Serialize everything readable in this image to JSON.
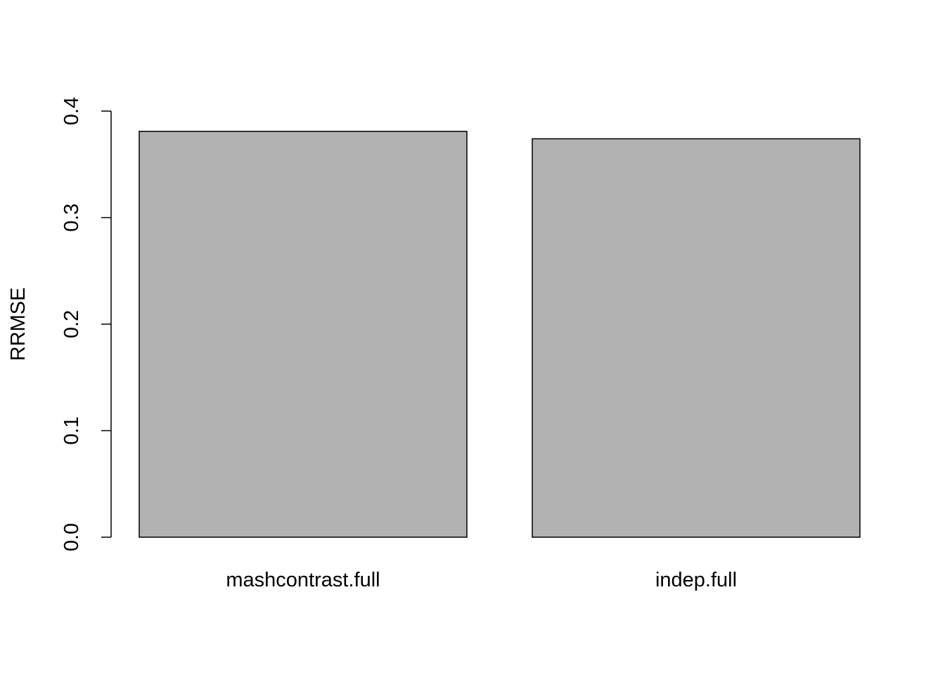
{
  "chart_data": {
    "type": "bar",
    "title": "",
    "xlabel": "",
    "ylabel": "RRMSE",
    "categories": [
      "mashcontrast.full",
      "indep.full"
    ],
    "values": [
      0.381,
      0.374
    ],
    "ylim": [
      0,
      0.4
    ],
    "yticks": [
      0,
      0.1,
      0.2,
      0.3,
      0.4
    ],
    "ytick_labels": [
      "0.0",
      "0.1",
      "0.2",
      "0.3",
      "0.4"
    ],
    "grid": false,
    "legend": "none",
    "bar_fill": "#b2b2b2",
    "bar_stroke": "#000000"
  }
}
